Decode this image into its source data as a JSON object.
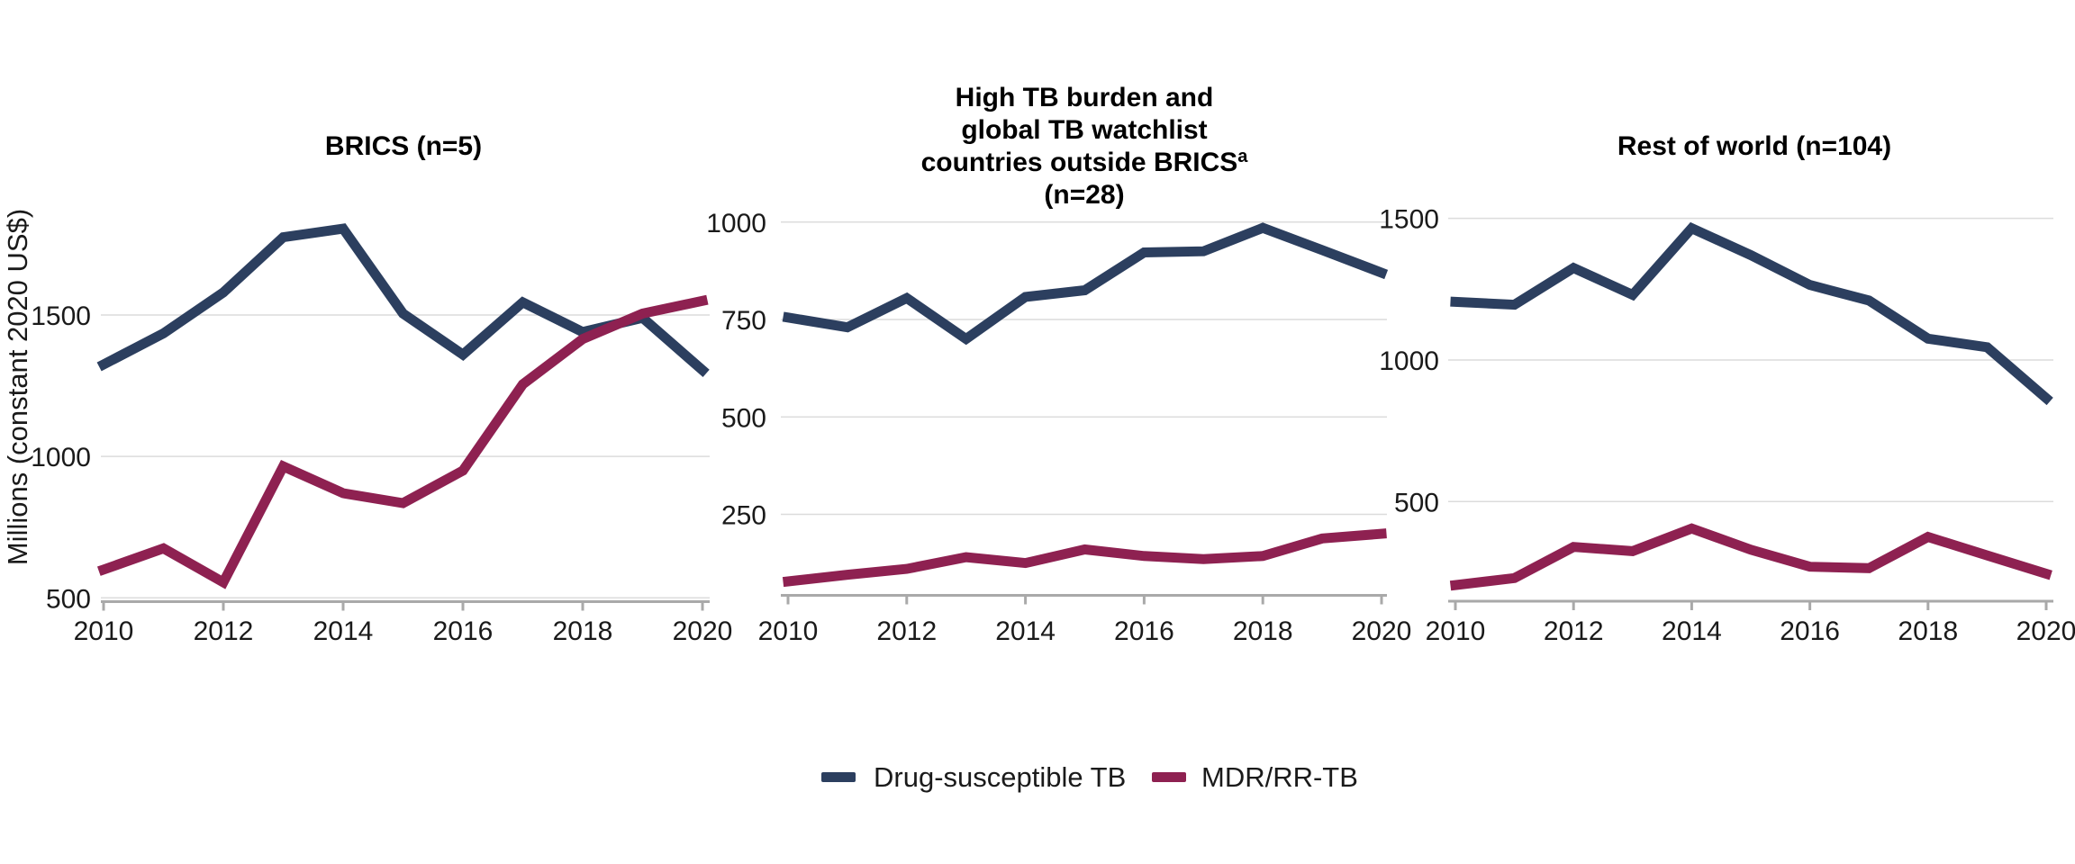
{
  "figure": {
    "y_axis_title": "Millions (constant 2020 US$)",
    "legend": [
      {
        "label": "Drug-susceptible TB",
        "color": "#2c3f5f"
      },
      {
        "label": "MDR/RR-TB",
        "color": "#8e2151"
      }
    ]
  },
  "colors": {
    "background": "#ffffff",
    "gridline": "#dcdcdc",
    "axis": "#a9a9a9",
    "tick_text": "#1a1a1a",
    "title_text": "#000000",
    "drug_susceptible": "#2c3f5f",
    "mdr_rr": "#8e2151"
  },
  "chart_data": [
    {
      "type": "line",
      "title": "BRICS (n=5)",
      "title_lines": [
        {
          "text": "BRICS (n=5)"
        }
      ],
      "x": [
        2010,
        2011,
        2012,
        2013,
        2014,
        2015,
        2016,
        2017,
        2018,
        2019,
        2020
      ],
      "x_ticks": [
        2010,
        2012,
        2014,
        2016,
        2018,
        2020
      ],
      "y_ticks": [
        500,
        1000,
        1500
      ],
      "ylim": [
        500,
        1870
      ],
      "grid": true,
      "series": [
        {
          "name": "Drug-susceptible TB",
          "color": "#2c3f5f",
          "values": [
            1325,
            1435,
            1580,
            1775,
            1805,
            1505,
            1360,
            1545,
            1440,
            1490,
            1305
          ]
        },
        {
          "name": "MDR/RR-TB",
          "color": "#8e2151",
          "values": [
            600,
            675,
            555,
            965,
            870,
            835,
            950,
            1255,
            1415,
            1505,
            1550
          ]
        }
      ]
    },
    {
      "type": "line",
      "title": "High TB burden and global TB watchlist countries outside BRICSᵃ (n=28)",
      "title_lines": [
        {
          "text": "High TB burden and"
        },
        {
          "text": "global TB watchlist"
        },
        {
          "text": "countries outside BRICS",
          "sup": "a"
        },
        {
          "text": "(n=28)"
        }
      ],
      "x": [
        2010,
        2011,
        2012,
        2013,
        2014,
        2015,
        2016,
        2017,
        2018,
        2019,
        2020
      ],
      "x_ticks": [
        2010,
        2012,
        2014,
        2016,
        2018,
        2020
      ],
      "y_ticks": [
        250,
        500,
        750,
        1000
      ],
      "ylim": [
        45,
        1060
      ],
      "grid": true,
      "series": [
        {
          "name": "Drug-susceptible TB",
          "color": "#2c3f5f",
          "values": [
            755,
            730,
            805,
            700,
            808,
            825,
            922,
            925,
            985,
            928,
            870
          ]
        },
        {
          "name": "MDR/RR-TB",
          "color": "#8e2151",
          "values": [
            78,
            95,
            110,
            140,
            125,
            160,
            143,
            135,
            143,
            188,
            200
          ]
        }
      ]
    },
    {
      "type": "line",
      "title": "Rest of world (n=104)",
      "title_lines": [
        {
          "text": "Rest of world (n=104)"
        }
      ],
      "x": [
        2010,
        2011,
        2012,
        2013,
        2014,
        2015,
        2016,
        2017,
        2018,
        2019,
        2020
      ],
      "x_ticks": [
        2010,
        2012,
        2014,
        2016,
        2018,
        2020
      ],
      "y_ticks": [
        500,
        1000,
        1500
      ],
      "ylim": [
        148,
        1560
      ],
      "grid": true,
      "series": [
        {
          "name": "Drug-susceptible TB",
          "color": "#2c3f5f",
          "values": [
            1205,
            1195,
            1325,
            1230,
            1465,
            1370,
            1265,
            1210,
            1075,
            1045,
            865
          ]
        },
        {
          "name": "MDR/RR-TB",
          "color": "#8e2151",
          "values": [
            205,
            230,
            340,
            325,
            405,
            330,
            270,
            265,
            375,
            310,
            245
          ]
        }
      ]
    }
  ]
}
